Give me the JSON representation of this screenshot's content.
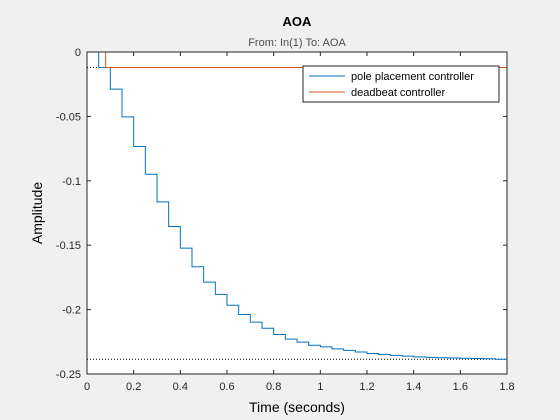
{
  "chart_data": {
    "type": "line",
    "title": "AOA",
    "subtitle": "From: In(1)  To: AOA",
    "xlabel": "Time (seconds)",
    "ylabel": "Amplitude",
    "xlim": [
      0,
      1.8
    ],
    "ylim": [
      -0.25,
      0
    ],
    "xticks": [
      0,
      0.2,
      0.4,
      0.6,
      0.8,
      1,
      1.2,
      1.4,
      1.6,
      1.8
    ],
    "xtick_labels": [
      "0",
      "0.2",
      "0.4",
      "0.6",
      "0.8",
      "1",
      "1.2",
      "1.4",
      "1.6",
      "1.8"
    ],
    "yticks": [
      0,
      -0.05,
      -0.1,
      -0.15,
      -0.2,
      -0.25
    ],
    "ytick_labels": [
      "0",
      "-0.05",
      "-0.1",
      "-0.15",
      "-0.2",
      "-0.25"
    ],
    "grid": false,
    "legend_position": "top-right",
    "steady_state_value": -0.2385,
    "series": [
      {
        "name": "pole placement controller",
        "color": "#0072bd",
        "style": "stairs",
        "step": 0.05,
        "values": [
          0,
          -0.012,
          -0.0288,
          -0.0504,
          -0.0734,
          -0.0949,
          -0.1164,
          -0.1355,
          -0.1523,
          -0.1667,
          -0.1787,
          -0.1882,
          -0.1966,
          -0.2038,
          -0.2097,
          -0.2145,
          -0.2193,
          -0.2229,
          -0.2253,
          -0.2277,
          -0.2289,
          -0.2305,
          -0.2317,
          -0.2329,
          -0.2341,
          -0.2349,
          -0.2355,
          -0.2361,
          -0.2367,
          -0.2371,
          -0.2374,
          -0.2376,
          -0.2378,
          -0.238,
          -0.2382,
          -0.2385
        ]
      },
      {
        "name": "deadbeat controller",
        "color": "#d95319",
        "style": "stairs",
        "x": [
          0,
          0.05,
          0.08,
          1.8
        ],
        "values": [
          0,
          0,
          -0.012,
          -0.012
        ]
      }
    ]
  }
}
